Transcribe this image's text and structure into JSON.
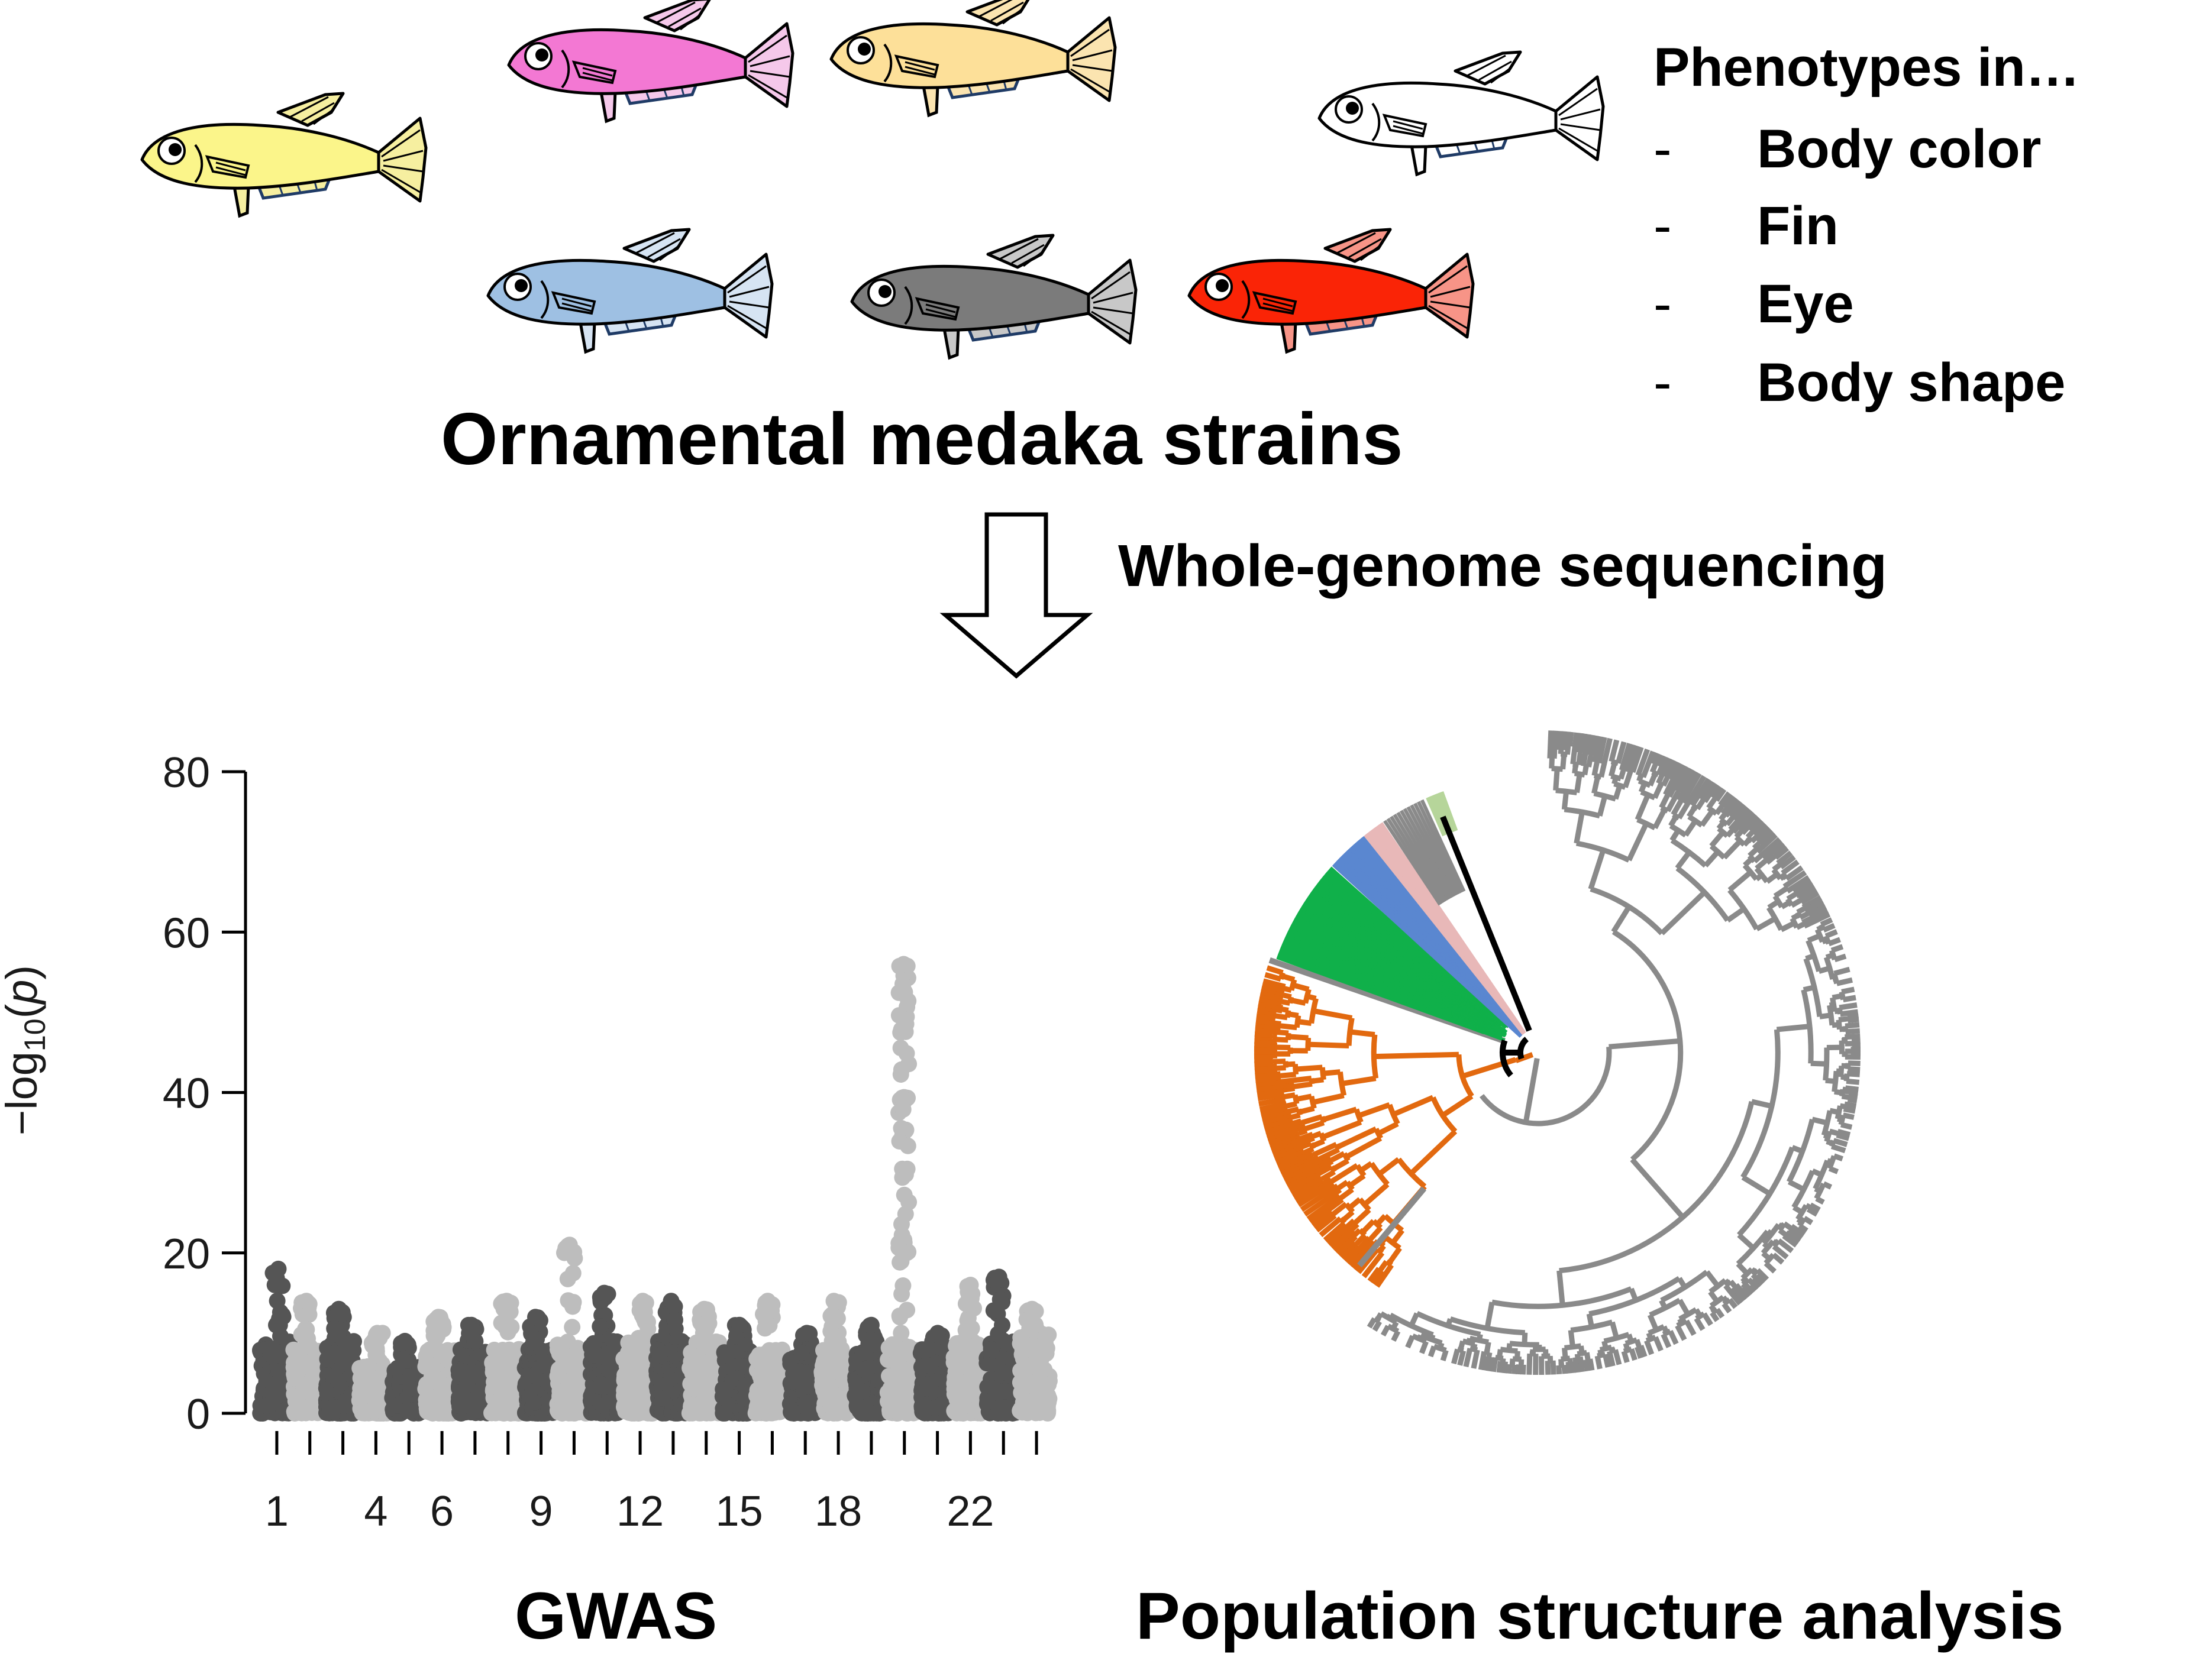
{
  "title": "Ornamental medaka strains",
  "phenotypes": {
    "heading": "Phenotypes in…",
    "items": [
      {
        "dash": "-",
        "label": "Body color"
      },
      {
        "dash": "-",
        "label": "Fin"
      },
      {
        "dash": "-",
        "label": "Eye"
      },
      {
        "dash": "-",
        "label": "Body shape"
      }
    ]
  },
  "fish": [
    {
      "body": "#fbf58a",
      "fin": "#f6efa0"
    },
    {
      "body": "#f378d3",
      "fin": "#f5c8ea"
    },
    {
      "body": "#fde099",
      "fin": "#fbe4b0"
    },
    {
      "body": "#ffffff",
      "fin": "#ffffff"
    },
    {
      "body": "#9ec0e3",
      "fin": "#d6e4f3"
    },
    {
      "body": "#7b7b7b",
      "fin": "#c8c8c8"
    },
    {
      "body": "#fa2406",
      "fin": "#f79487"
    }
  ],
  "arrow_label": "Whole-genome sequencing",
  "gwas": {
    "label": "GWAS",
    "ylabel_main": "−log",
    "ylabel_sub": "10",
    "ylabel_paren_open": "(",
    "ylabel_var": "p",
    "ylabel_paren_close": ")",
    "colors": {
      "dark": "#555555",
      "light": "#bdbdbd"
    }
  },
  "chart_data": {
    "type": "scatter",
    "title": "",
    "xlabel": "",
    "ylabel": "−log10(p)",
    "ylim": [
      0,
      80
    ],
    "yticks": [
      0,
      20,
      40,
      60,
      80
    ],
    "chromosomes": [
      1,
      2,
      3,
      4,
      5,
      6,
      7,
      8,
      9,
      10,
      11,
      12,
      13,
      14,
      15,
      16,
      17,
      18,
      19,
      20,
      21,
      22,
      23,
      24
    ],
    "x_tick_labels": [
      {
        "chr": 1,
        "label": "1"
      },
      {
        "chr": 4,
        "label": "4"
      },
      {
        "chr": 6,
        "label": "6"
      },
      {
        "chr": 9,
        "label": "9"
      },
      {
        "chr": 12,
        "label": "12"
      },
      {
        "chr": 15,
        "label": "15"
      },
      {
        "chr": 18,
        "label": "18"
      },
      {
        "chr": 22,
        "label": "22"
      }
    ],
    "peak_max_neglog10p": [
      18,
      14,
      13,
      10,
      9,
      12,
      11,
      14,
      12,
      21,
      15,
      14,
      14,
      13,
      11,
      14,
      10,
      14,
      11,
      56,
      10,
      16,
      17,
      13
    ],
    "baseline_neglog10p": [
      9,
      8,
      9,
      6,
      6,
      8,
      8,
      8,
      8,
      9,
      9,
      9,
      9,
      9,
      8,
      8,
      7,
      8,
      8,
      9,
      8,
      9,
      9,
      10
    ]
  },
  "tree": {
    "label": "Population structure analysis",
    "colors": {
      "gray": "#8a8a8a",
      "orange": "#e2690f",
      "green": "#10b04a",
      "blue": "#5a87d0",
      "pink": "#e8b8b8",
      "lightgreen": "#b6d59a",
      "black": "#000000"
    }
  }
}
